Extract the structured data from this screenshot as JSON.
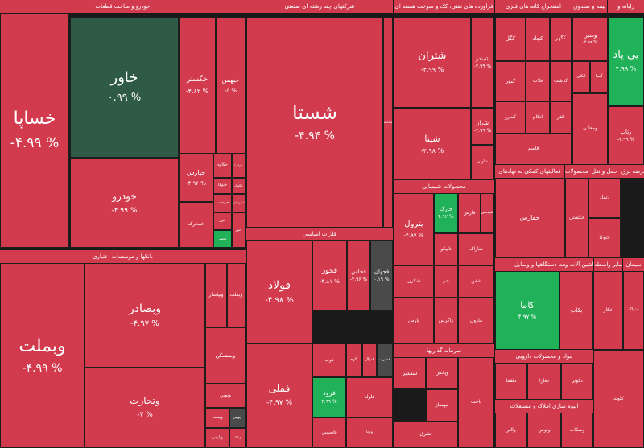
{
  "colors": {
    "red": "#d23a4d",
    "green_dark": "#2f5a45",
    "green": "#21b158",
    "neutral": "#4a4a4a",
    "gap": "#1a1a1a"
  },
  "sectors": [
    {
      "id": "auto",
      "title": "خودرو و ساخت قطعات"
    },
    {
      "id": "chemical",
      "title": "شرکتهای چند رشته ای صنعتی"
    },
    {
      "id": "refinery",
      "title": "فراورده های نفتی، کک و سوخت هسته ای"
    },
    {
      "id": "mining",
      "title": "استخراج کانه های فلزی"
    },
    {
      "id": "insurance",
      "title": "بیمه و صندوق"
    },
    {
      "id": "telecom",
      "title": "رایانه و"
    },
    {
      "id": "metals",
      "title": "فلزات اساسی"
    },
    {
      "id": "banks",
      "title": "بانکها و موسسات اعتباری"
    },
    {
      "id": "chem-products",
      "title": "محصولات شیمیایی"
    },
    {
      "id": "support",
      "title": "فعالیتهای کمکی به نهادهای"
    },
    {
      "id": "pharma",
      "title": "محصولات"
    },
    {
      "id": "transport",
      "title": "حمل و نقل"
    },
    {
      "id": "contracting",
      "title": "عرضه برق"
    },
    {
      "id": "equipment",
      "title": "ساخت دستگاهها و وسایل"
    },
    {
      "id": "machinery",
      "title": "ماشین آلات و"
    },
    {
      "id": "other",
      "title": "سایر واسطه"
    },
    {
      "id": "cement",
      "title": "سیمان"
    },
    {
      "id": "investment",
      "title": "سرمایه گذاریها"
    },
    {
      "id": "food",
      "title": "مواد و محصولات دارویی"
    },
    {
      "id": "realestate",
      "title": "انبوه سازی املاک و مستغلات"
    }
  ],
  "chart_data": {
    "type": "treemap",
    "tiles": [
      {
        "name": "خساپا",
        "change": "-۴.۹۹ %"
      },
      {
        "name": "خاور",
        "change": "۰.۹۹ %"
      },
      {
        "name": "خگستر",
        "change": "-۴.۶۲ %"
      },
      {
        "name": "خبهمن",
        "change": "-۵ %"
      },
      {
        "name": "خودرو",
        "change": "-۴.۹۹ %"
      },
      {
        "name": "خپارس",
        "change": "-۴.۹۶ %"
      },
      {
        "name": "خکاوه",
        "change": ""
      },
      {
        "name": "خزامیا",
        "change": ""
      },
      {
        "name": "ختوقا",
        "change": ""
      },
      {
        "name": "خکمک",
        "change": ""
      },
      {
        "name": "خمحرکه",
        "change": ""
      },
      {
        "name": "خریخت",
        "change": ""
      },
      {
        "name": "خچرخش",
        "change": ""
      },
      {
        "name": "خزر",
        "change": ""
      },
      {
        "name": "خنصیر",
        "change": ""
      },
      {
        "name": "ختور",
        "change": ""
      },
      {
        "name": "شستا",
        "change": "-۴.۹۴ %"
      },
      {
        "name": "شتران",
        "change": "-۴.۹۹ %"
      },
      {
        "name": "شبندر",
        "change": "-۴.۹۹ %"
      },
      {
        "name": "شپنا",
        "change": "-۴.۹۸ %"
      },
      {
        "name": "شراز",
        "change": "-۴.۹۹ %"
      },
      {
        "name": "شاوان",
        "change": ""
      },
      {
        "name": "شپاکسا",
        "change": ""
      },
      {
        "name": "فملی",
        "change": ""
      },
      {
        "name": "کچاد",
        "change": ""
      },
      {
        "name": "فولاد",
        "change": "-۴.۹۸ %"
      },
      {
        "name": "فخوز",
        "change": "-۴.۸۱ %"
      },
      {
        "name": "فخاس",
        "change": "-۴.۹۶ %"
      },
      {
        "name": "فجهان",
        "change": "۰.۱۹ %"
      },
      {
        "name": "فملی",
        "change": "-۴.۹۷ %"
      },
      {
        "name": "فرود",
        "change": "۴.۹۹ %"
      },
      {
        "name": "کاوه",
        "change": ""
      },
      {
        "name": "فنوال",
        "change": ""
      },
      {
        "name": "فسرب",
        "change": ""
      },
      {
        "name": "ذوب",
        "change": ""
      },
      {
        "name": "فاسمین",
        "change": ""
      },
      {
        "name": "فلوله",
        "change": ""
      },
      {
        "name": "ورنا",
        "change": ""
      },
      {
        "name": "وبملت",
        "change": "-۴.۹۹ %"
      },
      {
        "name": "وبصادر",
        "change": "-۴.۹۷ %"
      },
      {
        "name": "وتجارت",
        "change": "-۷ %"
      },
      {
        "name": "وبپاسار",
        "change": ""
      },
      {
        "name": "وبملت",
        "change": ""
      },
      {
        "name": "وبمسکن",
        "change": ""
      },
      {
        "name": "ونوین",
        "change": ""
      },
      {
        "name": "وپست",
        "change": ""
      },
      {
        "name": "وبهمن",
        "change": ""
      },
      {
        "name": "وپارس",
        "change": ""
      },
      {
        "name": "وبانک",
        "change": ""
      },
      {
        "name": "پترول",
        "change": "-۴.۹۷ %"
      },
      {
        "name": "خارک",
        "change": "۴.۹۲ %"
      },
      {
        "name": "فارس",
        "change": ""
      },
      {
        "name": "شپدیس",
        "change": ""
      },
      {
        "name": "تاپیکو",
        "change": ""
      },
      {
        "name": "شاراک",
        "change": ""
      },
      {
        "name": "شکرن",
        "change": ""
      },
      {
        "name": "جم",
        "change": ""
      },
      {
        "name": "شفن",
        "change": ""
      },
      {
        "name": "پارس",
        "change": ""
      },
      {
        "name": "زاگرس",
        "change": ""
      },
      {
        "name": "مارون",
        "change": ""
      },
      {
        "name": "شغدیر",
        "change": ""
      },
      {
        "name": "وپخش",
        "change": ""
      },
      {
        "name": "کگل",
        "change": ""
      },
      {
        "name": "کچاد",
        "change": ""
      },
      {
        "name": "کگهر",
        "change": ""
      },
      {
        "name": "کنور",
        "change": ""
      },
      {
        "name": "فلات",
        "change": ""
      },
      {
        "name": "کدشت",
        "change": ""
      },
      {
        "name": "کمارو",
        "change": ""
      },
      {
        "name": "اتکام",
        "change": ""
      },
      {
        "name": "کفر",
        "change": ""
      },
      {
        "name": "قاسم",
        "change": ""
      },
      {
        "name": "پی پاد",
        "change": "۴.۹۹ %"
      },
      {
        "name": "رتاپ",
        "change": "-۴.۹۹ %"
      },
      {
        "name": "وسین",
        "change": "-۴.۹۹ %"
      },
      {
        "name": "اتکای",
        "change": ""
      },
      {
        "name": "آسیا",
        "change": ""
      },
      {
        "name": "ومعادن",
        "change": ""
      },
      {
        "name": "دتماد",
        "change": ""
      },
      {
        "name": "حتوکا",
        "change": ""
      },
      {
        "name": "حکشتی",
        "change": ""
      },
      {
        "name": "حفارس",
        "change": ""
      },
      {
        "name": "کاما",
        "change": "۴.۹۷ %"
      },
      {
        "name": "بکاب",
        "change": ""
      },
      {
        "name": "خکار",
        "change": ""
      },
      {
        "name": "ختراک",
        "change": ""
      },
      {
        "name": "کلوند",
        "change": ""
      },
      {
        "name": "دلقما",
        "change": ""
      },
      {
        "name": "دفارا",
        "change": ""
      },
      {
        "name": "دکوثر",
        "change": ""
      },
      {
        "name": "والبر",
        "change": ""
      },
      {
        "name": "وتوس",
        "change": ""
      },
      {
        "name": "وسکاب",
        "change": ""
      },
      {
        "name": "ثبهساز",
        "change": ""
      },
      {
        "name": "ثاخت",
        "change": ""
      },
      {
        "name": "ثشرق",
        "change": ""
      }
    ]
  }
}
